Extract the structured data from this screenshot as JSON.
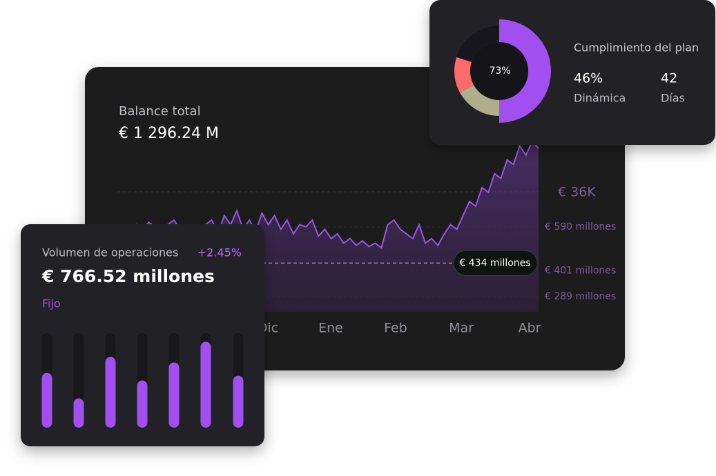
{
  "balance": {
    "title": "Balance total",
    "value": "€ 1 296.24 M",
    "chart": {
      "type": "line",
      "categories": [
        "Dic",
        "Ene",
        "Feb",
        "Mar",
        "Abr"
      ],
      "values": [
        560,
        580,
        550,
        600,
        570,
        610,
        590,
        560,
        600,
        620,
        580,
        550,
        590,
        540,
        600,
        620,
        560,
        640,
        600,
        660,
        580,
        620,
        570,
        650,
        600,
        640,
        580,
        620,
        560,
        600,
        590,
        620,
        550,
        580,
        540,
        560,
        520,
        540,
        510,
        530,
        505,
        520,
        500,
        600,
        620,
        580,
        560,
        540,
        600,
        520,
        540,
        510,
        560,
        600,
        580,
        640,
        700,
        680,
        760,
        740,
        820,
        800,
        880,
        860,
        940,
        900,
        960,
        930
      ],
      "ylim": [
        223,
        975
      ],
      "yticks": [
        {
          "value": 590,
          "label": "€ 590 millones"
        },
        {
          "value": 401,
          "label": "€ 401 millones"
        },
        {
          "value": 289,
          "label": "€ 289 millones"
        }
      ],
      "annotation": "€ 36K",
      "marker": {
        "value": 434,
        "label": "€ 434 millones"
      }
    }
  },
  "plan": {
    "title": "Cumplimiento del plan",
    "center_label": "73%",
    "segments": [
      {
        "value": 50,
        "color": "#a24ff0"
      },
      {
        "value": 17,
        "color": "#aeae8a"
      },
      {
        "value": 13,
        "color": "#ff6b6b"
      }
    ],
    "stats": [
      {
        "value": "46%",
        "label": "Dinámica"
      },
      {
        "value": "42",
        "label": "Días"
      }
    ]
  },
  "volume": {
    "title": "Volumen de operaciones",
    "change": "+2.45%",
    "value": "€ 766.52 millones",
    "subtitle": "Fijo",
    "chart": {
      "type": "bar",
      "values": [
        58,
        31,
        75,
        50,
        69,
        91,
        55
      ],
      "ylim": [
        0,
        100
      ],
      "color": "#a24ff0"
    }
  }
}
